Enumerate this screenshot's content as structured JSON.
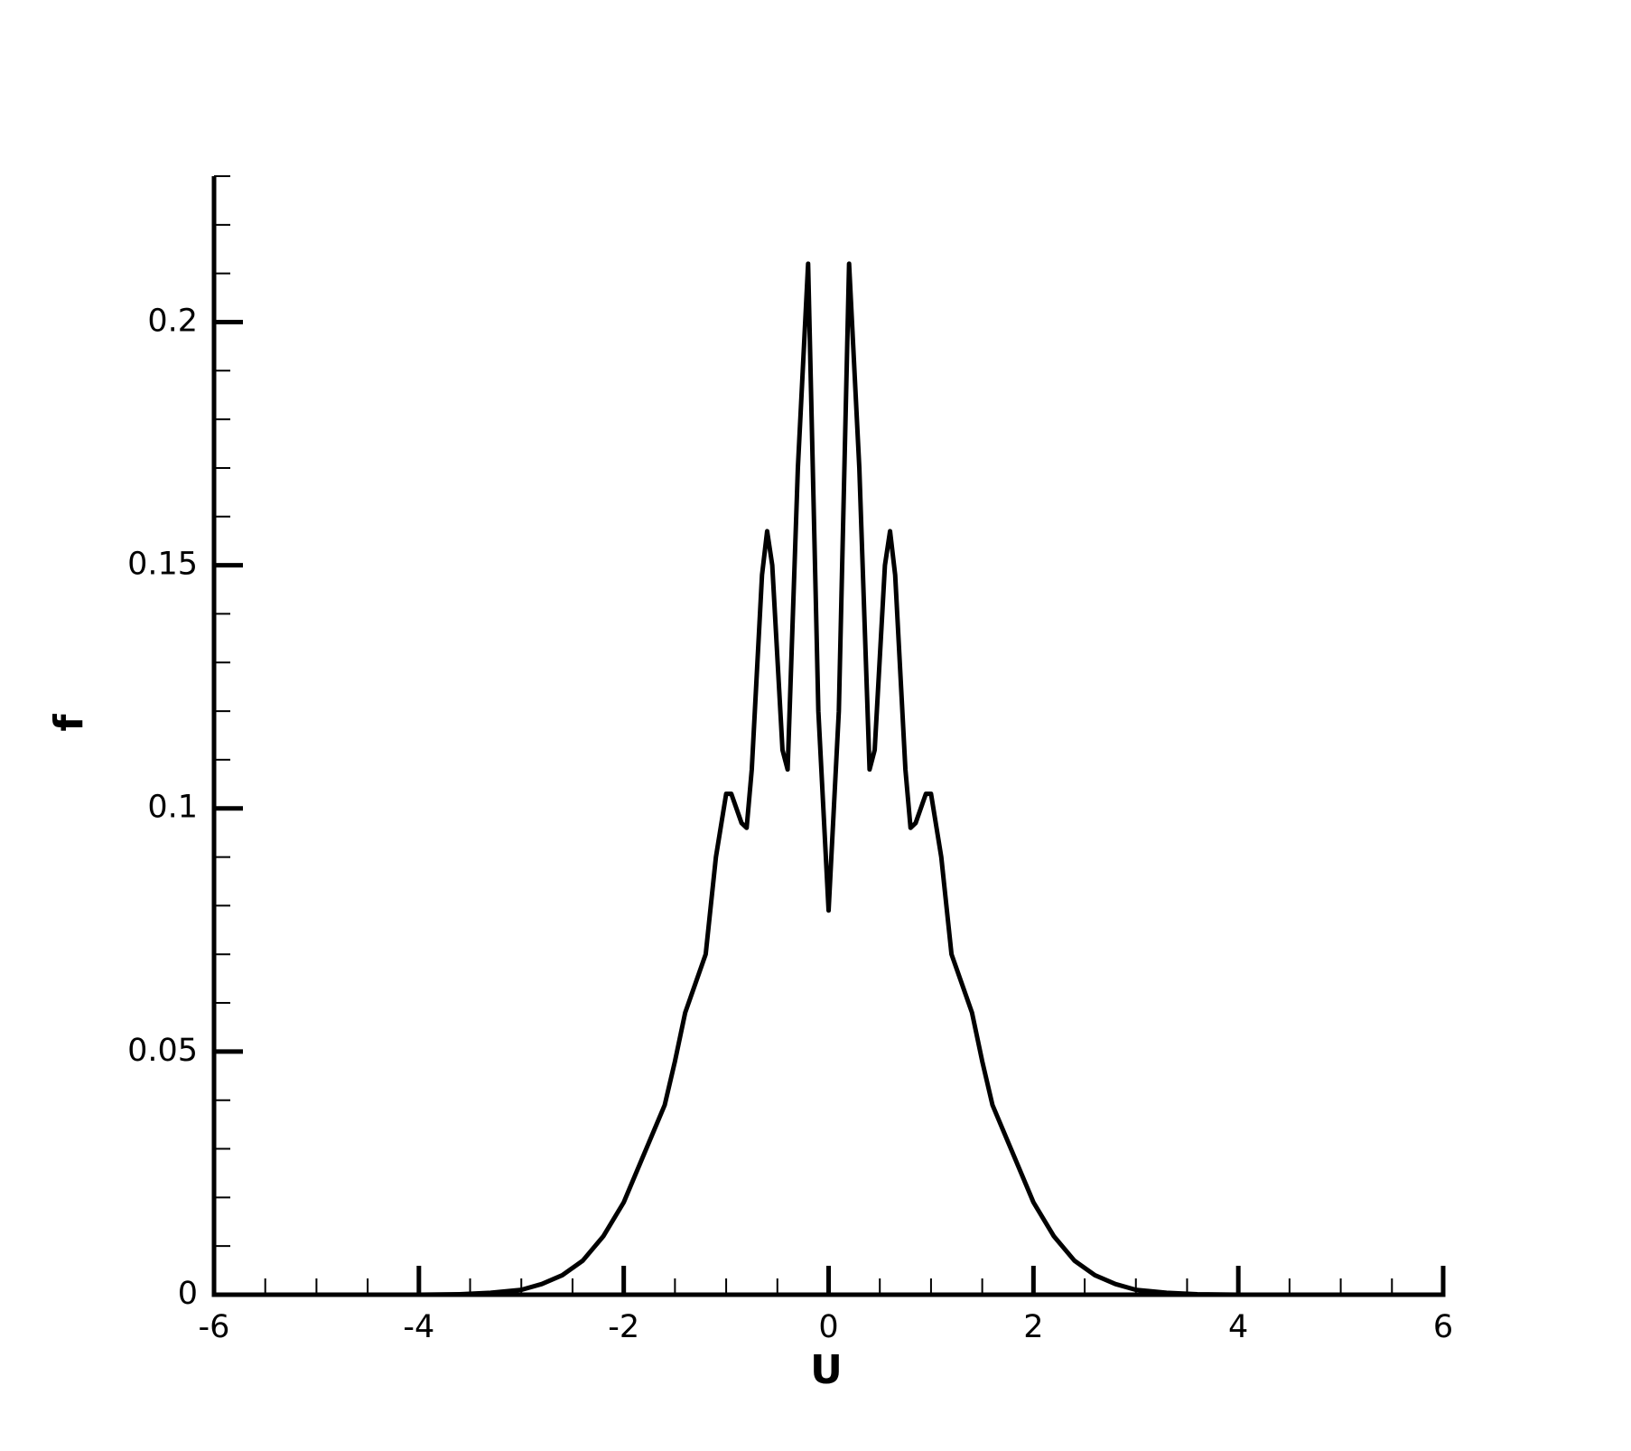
{
  "chart_data": {
    "type": "line",
    "x_label": "U",
    "y_label": "f",
    "x": [
      -6,
      -5,
      -4,
      -3.6,
      -3.3,
      -3,
      -2.8,
      -2.6,
      -2.4,
      -2.2,
      -2,
      -1.8,
      -1.7,
      -1.6,
      -1.5,
      -1.4,
      -1.3,
      -1.2,
      -1.1,
      -1,
      -0.95,
      -0.85,
      -0.8,
      -0.75,
      -0.65,
      -0.6,
      -0.55,
      -0.45,
      -0.4,
      -0.3,
      -0.2,
      -0.1,
      0,
      0.1,
      0.2,
      0.3,
      0.4,
      0.45,
      0.55,
      0.6,
      0.65,
      0.75,
      0.8,
      0.85,
      0.95,
      1,
      1.1,
      1.2,
      1.3,
      1.4,
      1.5,
      1.6,
      1.7,
      1.8,
      2,
      2.2,
      2.4,
      2.6,
      2.8,
      3,
      3.3,
      3.6,
      4,
      5,
      6
    ],
    "series": [
      {
        "name": "f",
        "color": "#000000",
        "values": [
          0,
          0,
          0,
          0.0001,
          0.0004,
          0.001,
          0.0022,
          0.004,
          0.007,
          0.012,
          0.019,
          0.029,
          0.034,
          0.039,
          0.048,
          0.058,
          0.064,
          0.07,
          0.09,
          0.103,
          0.103,
          0.097,
          0.096,
          0.108,
          0.148,
          0.157,
          0.15,
          0.112,
          0.108,
          0.17,
          0.212,
          0.12,
          0.079,
          0.12,
          0.212,
          0.17,
          0.108,
          0.112,
          0.15,
          0.157,
          0.148,
          0.108,
          0.096,
          0.097,
          0.103,
          0.103,
          0.09,
          0.07,
          0.064,
          0.058,
          0.048,
          0.039,
          0.034,
          0.029,
          0.019,
          0.012,
          0.007,
          0.004,
          0.0022,
          0.001,
          0.0004,
          0.0001,
          0,
          0,
          0
        ]
      }
    ],
    "xlim": [
      -6,
      6
    ],
    "xticks": [
      -6,
      -4,
      -2,
      0,
      2,
      4,
      6
    ],
    "ylim": [
      0,
      0.23
    ],
    "yticks": [
      0,
      0.05,
      0.1,
      0.15,
      0.2
    ],
    "grid": false
  }
}
